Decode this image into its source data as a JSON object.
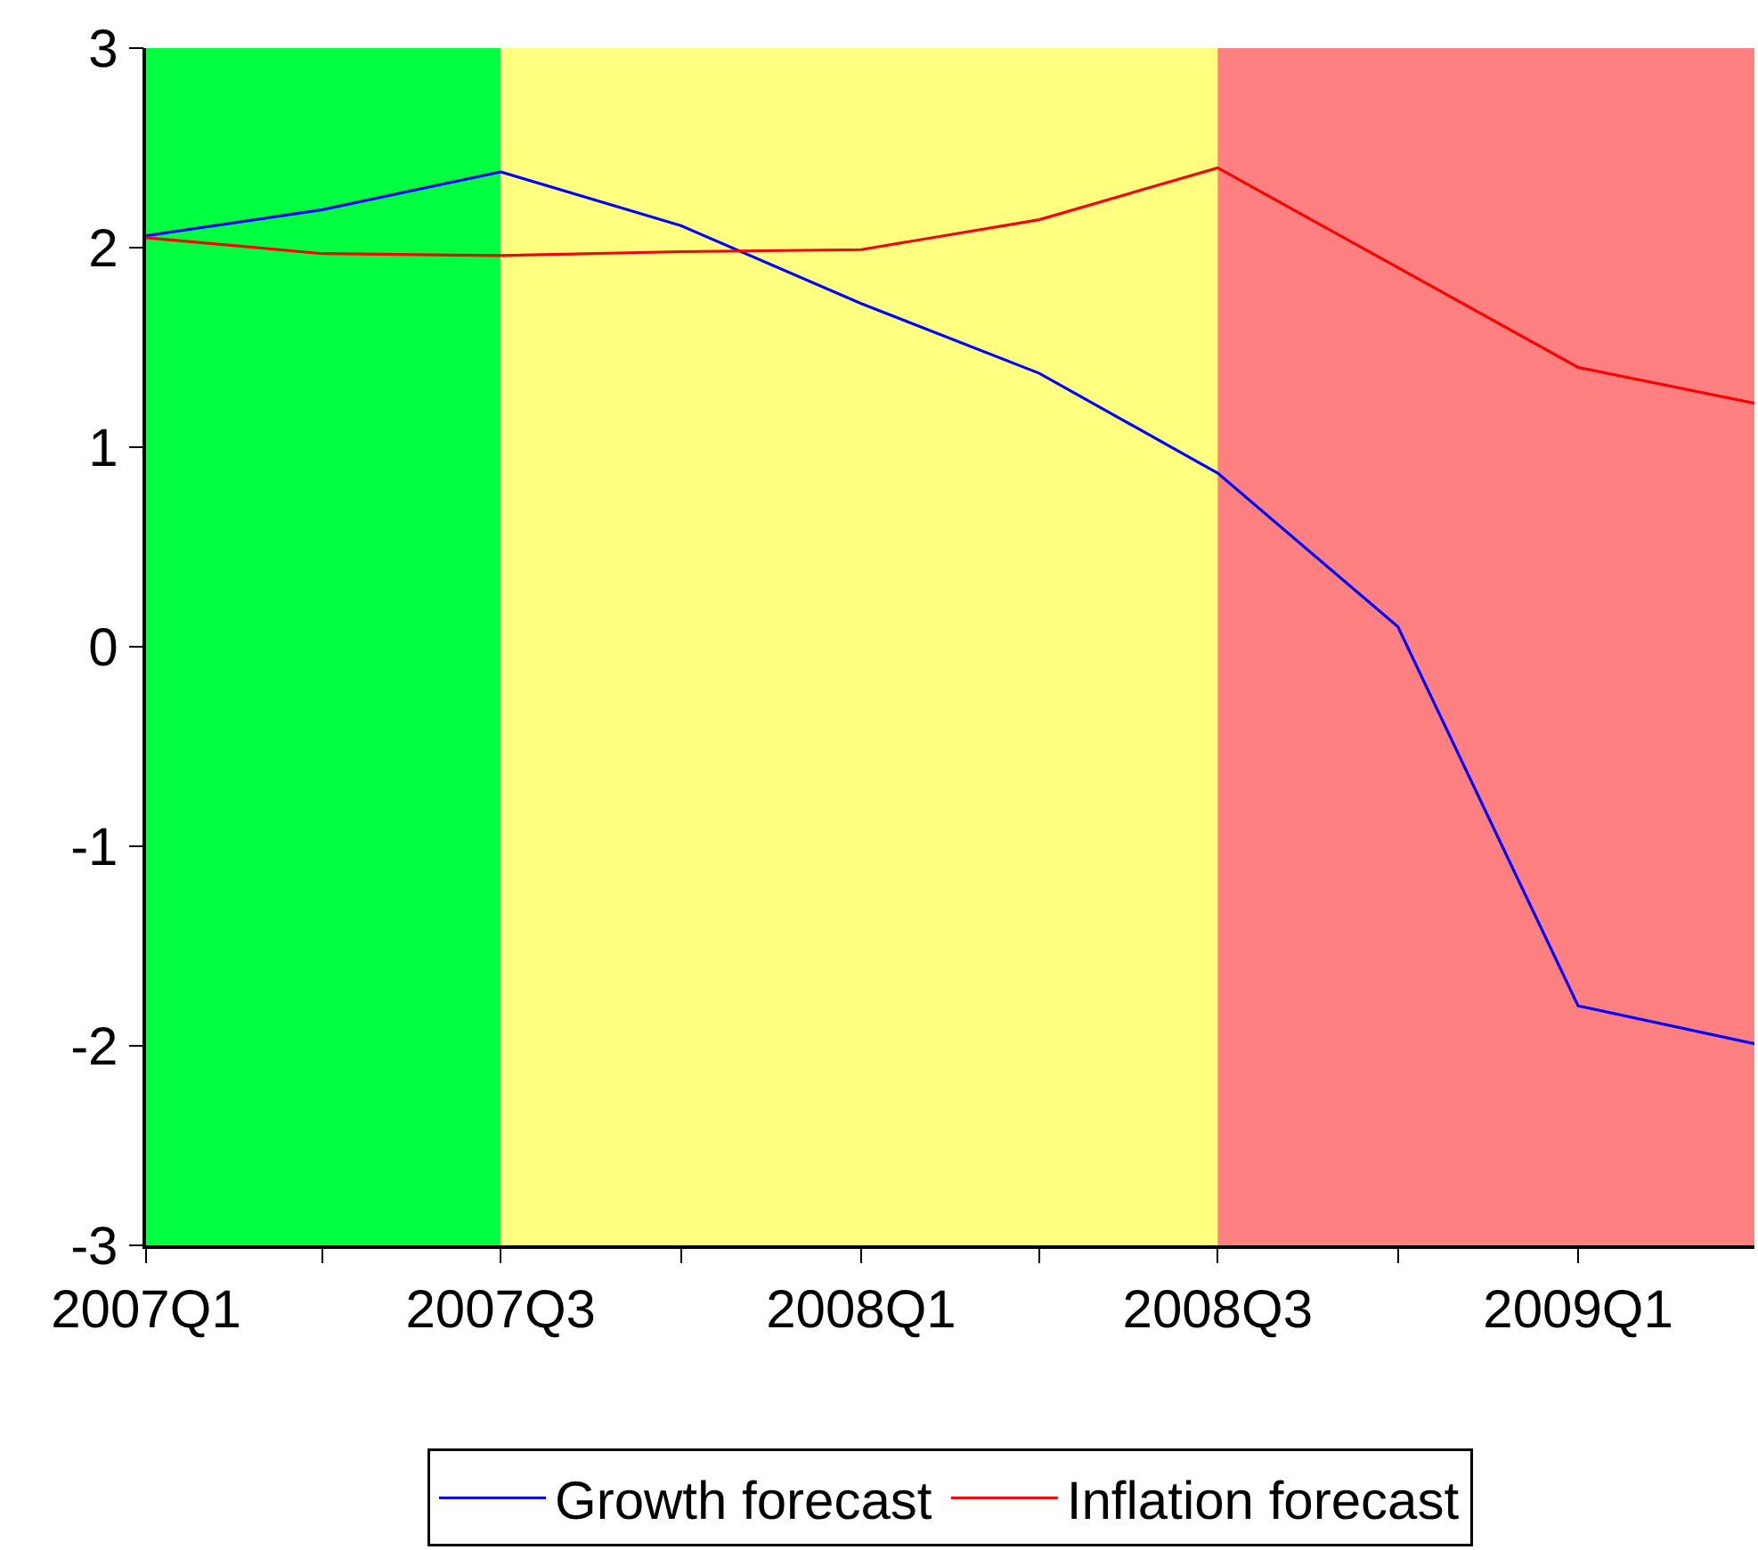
{
  "chart_data": {
    "type": "line",
    "x": [
      "2007-01",
      "2007-04",
      "2007-07",
      "2007-10",
      "2008-01",
      "2008-04",
      "2008-07",
      "2008-10",
      "2009-01",
      "2009-04"
    ],
    "series": [
      {
        "name": "Growth forecast",
        "color": "#0000ff",
        "values": [
          2.06,
          2.19,
          2.38,
          2.11,
          1.72,
          1.37,
          0.87,
          0.1,
          -1.8,
          -1.99
        ]
      },
      {
        "name": "Inflation forecast",
        "color": "#ff0000",
        "values": [
          2.05,
          1.97,
          1.96,
          1.98,
          1.99,
          2.14,
          2.4,
          1.9,
          1.4,
          1.22
        ]
      }
    ],
    "xlim": [
      "2007-01",
      "2009-04"
    ],
    "xticks": [
      {
        "value": "2007-01",
        "label": "2007Q1"
      },
      {
        "value": "2007-04",
        "label": null
      },
      {
        "value": "2007-07",
        "label": "2007Q3"
      },
      {
        "value": "2007-10",
        "label": null
      },
      {
        "value": "2008-01",
        "label": "2008Q1"
      },
      {
        "value": "2008-04",
        "label": null
      },
      {
        "value": "2008-07",
        "label": "2008Q3"
      },
      {
        "value": "2008-10",
        "label": null
      },
      {
        "value": "2009-01",
        "label": "2009Q1"
      }
    ],
    "ylim": [
      -3,
      3
    ],
    "yticks": [
      -3,
      -2,
      -1,
      0,
      1,
      2,
      3
    ],
    "bands": [
      {
        "axis": "x",
        "from": "2007-01",
        "to": "2007-07",
        "color": "#00ff40"
      },
      {
        "axis": "x",
        "from": "2007-07",
        "to": "2008-07",
        "color": "#ffff80"
      },
      {
        "axis": "x",
        "from": "2008-07",
        "to": "2009-04",
        "color": "#ff8080"
      }
    ],
    "grid": false,
    "legend": "bottom",
    "line_style": "solid",
    "marker": "none"
  }
}
